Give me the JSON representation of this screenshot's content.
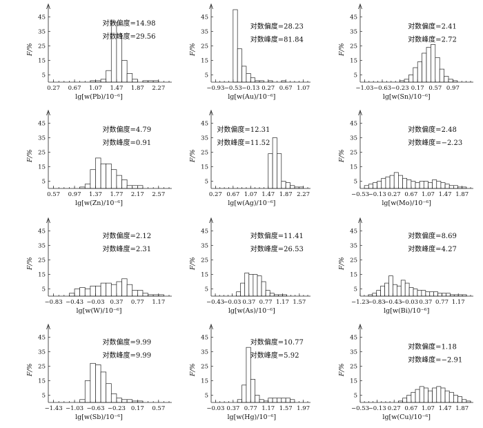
{
  "chart_data": [
    {
      "type": "bar",
      "ylabel": "F/%",
      "xlabel": "lg[w(Pb)/10⁻⁶]",
      "ylim": [
        0,
        50
      ],
      "yticks": [
        5,
        15,
        25,
        35,
        45
      ],
      "xticks": [
        "0.27",
        "0.67",
        "1.07",
        "1.47",
        "1.87",
        "2.27"
      ],
      "xlim": [
        0.17,
        2.47
      ],
      "skewness_label": "对数偏度=14.98",
      "kurtosis_label": "对数峰度=29.56",
      "bin_start": 0.97,
      "bin_width": 0.1,
      "values": [
        1,
        1,
        2,
        8,
        41,
        33,
        15,
        6,
        2,
        0,
        1,
        1,
        1,
        0
      ]
    },
    {
      "type": "bar",
      "ylabel": "F/%",
      "xlabel": "lg[w(Au)/10⁻⁶]",
      "ylim": [
        0,
        50
      ],
      "yticks": [
        5,
        15,
        25,
        35,
        45
      ],
      "xticks": [
        "−0.93",
        "−0.53",
        "−0.13",
        "0.27",
        "0.67",
        "1.07"
      ],
      "xlim": [
        -1.03,
        1.17
      ],
      "skewness_label": "对数偏度=28.23",
      "kurtosis_label": "对数峰度=81.84",
      "bin_start": -0.53,
      "bin_width": 0.1,
      "values": [
        50,
        23,
        11,
        6,
        3,
        1,
        1,
        0,
        1,
        0,
        0,
        1,
        0
      ]
    },
    {
      "type": "bar",
      "ylabel": "F/%",
      "xlabel": "lg[w(Sn)/10⁻⁶]",
      "ylim": [
        0,
        50
      ],
      "yticks": [
        5,
        15,
        25,
        35,
        45
      ],
      "xticks": [
        "−1.03",
        "−0.63",
        "−0.23",
        "0.17",
        "0.57",
        "0.97"
      ],
      "xlim": [
        -1.13,
        1.37
      ],
      "skewness_label": "对数偏度=2.41",
      "kurtosis_label": "对数峰度=2.72",
      "bin_start": -0.23,
      "bin_width": 0.1,
      "values": [
        1,
        2,
        5,
        10,
        14,
        20,
        24,
        26,
        17,
        9,
        4,
        2,
        1
      ]
    },
    {
      "type": "bar",
      "ylabel": "F/%",
      "xlabel": "lg[w(Zn)/10⁻⁶]",
      "ylim": [
        0,
        50
      ],
      "yticks": [
        5,
        15,
        25,
        35,
        45
      ],
      "xticks": [
        "0.57",
        "0.97",
        "1.37",
        "1.77",
        "2.17",
        "2.57"
      ],
      "xlim": [
        0.47,
        2.77
      ],
      "skewness_label": "对数偏度=4.79",
      "kurtosis_label": "对数峰度=0.91",
      "bin_start": 1.07,
      "bin_width": 0.1,
      "values": [
        1,
        3,
        13,
        21,
        17,
        17,
        13,
        9,
        6,
        2,
        2,
        2
      ]
    },
    {
      "type": "bar",
      "ylabel": "F/%",
      "xlabel": "lg[w(Ag)/10⁻⁶]",
      "ylim": [
        0,
        50
      ],
      "yticks": [
        5,
        15,
        25,
        35,
        45
      ],
      "xticks": [
        "0.27",
        "0.67",
        "1.07",
        "1.47",
        "1.87",
        "2.27"
      ],
      "xlim": [
        0.17,
        2.37
      ],
      "skewness_label": "对数偏度=12.31",
      "kurtosis_label": "对数峰度=11.52",
      "bin_start": 1.47,
      "bin_width": 0.1,
      "values": [
        24,
        35,
        24,
        5,
        4,
        2,
        1,
        1
      ]
    },
    {
      "type": "bar",
      "ylabel": "F/%",
      "xlabel": "lg[w(Mo)/10⁻⁶]",
      "ylim": [
        0,
        50
      ],
      "yticks": [
        5,
        15,
        25,
        35,
        45
      ],
      "xticks": [
        "−0.53",
        "−0.13",
        "0.27",
        "0.67",
        "1.07",
        "1.47",
        "1.87"
      ],
      "xlim": [
        -0.53,
        2.07
      ],
      "skewness_label": "对数偏度=2.48",
      "kurtosis_label": "对数峰度=−2.23",
      "bin_start": -0.43,
      "bin_width": 0.1,
      "values": [
        2,
        3,
        4,
        5,
        7,
        8,
        9,
        11,
        9,
        7,
        6,
        5,
        4,
        5,
        5,
        4,
        6,
        5,
        4,
        3,
        2,
        2,
        1,
        1
      ]
    },
    {
      "type": "bar",
      "ylabel": "F/%",
      "xlabel": "lg[w(W)/10⁻⁶]",
      "ylim": [
        0,
        50
      ],
      "yticks": [
        5,
        15,
        25,
        35,
        45
      ],
      "xticks": [
        "−0.83",
        "−0.43",
        "−0.03",
        "0.37",
        "0.77",
        "1.17"
      ],
      "xlim": [
        -0.93,
        1.37
      ],
      "skewness_label": "对数偏度=2.12",
      "kurtosis_label": "对数峰度=2.31",
      "bin_start": -0.53,
      "bin_width": 0.1,
      "values": [
        2,
        5,
        6,
        5,
        7,
        7,
        9,
        9,
        8,
        10,
        12,
        8,
        4,
        4,
        2,
        1,
        1,
        1
      ]
    },
    {
      "type": "bar",
      "ylabel": "F/%",
      "xlabel": "lg[w(As)/10⁻⁶]",
      "ylim": [
        0,
        50
      ],
      "yticks": [
        5,
        15,
        25,
        35,
        45
      ],
      "xticks": [
        "−0.43",
        "−0.03",
        "0.37",
        "0.77",
        "1.17",
        "1.57"
      ],
      "xlim": [
        -0.53,
        1.77
      ],
      "skewness_label": "对数偏度=11.41",
      "kurtosis_label": "对数峰度=26.53",
      "bin_start": 0.07,
      "bin_width": 0.1,
      "values": [
        3,
        9,
        16,
        15,
        15,
        14,
        10,
        4,
        2,
        1,
        1,
        1
      ]
    },
    {
      "type": "bar",
      "ylabel": "F/%",
      "xlabel": "lg[w(Bi)/10⁻⁶]",
      "ylim": [
        0,
        50
      ],
      "yticks": [
        5,
        15,
        25,
        35,
        45
      ],
      "xticks": [
        "−1.23",
        "−0.83",
        "−0.43",
        "−0.03",
        "0.37",
        "0.77",
        "1.17"
      ],
      "xlim": [
        -1.23,
        1.47
      ],
      "skewness_label": "对数偏度=8.69",
      "kurtosis_label": "对数峰度=4.27",
      "bin_start": -1.03,
      "bin_width": 0.1,
      "values": [
        1,
        2,
        4,
        7,
        9,
        14,
        8,
        7,
        11,
        9,
        6,
        5,
        4,
        4,
        3,
        3,
        3,
        2,
        2,
        2,
        1,
        1,
        1,
        1
      ]
    },
    {
      "type": "bar",
      "ylabel": "F/%",
      "xlabel": "lg[w(Sb)/10⁻⁶]",
      "ylim": [
        0,
        50
      ],
      "yticks": [
        5,
        15,
        25,
        35,
        45
      ],
      "xticks": [
        "−1.43",
        "−1.03",
        "−0.63",
        "−0.23",
        "0.17",
        "0.57"
      ],
      "xlim": [
        -1.53,
        0.77
      ],
      "skewness_label": "对数偏度=9.99",
      "kurtosis_label": "对数峰度=9.99",
      "bin_start": -0.93,
      "bin_width": 0.1,
      "values": [
        2,
        15,
        27,
        26,
        21,
        13,
        6,
        3,
        2,
        2,
        1,
        1
      ]
    },
    {
      "type": "bar",
      "ylabel": "F/%",
      "xlabel": "lg[w(Hg)/10⁻⁶]",
      "ylim": [
        0,
        50
      ],
      "yticks": [
        5,
        15,
        25,
        35,
        45
      ],
      "xticks": [
        "−0.03",
        "0.37",
        "0.77",
        "1.17",
        "1.57",
        "1.97"
      ],
      "xlim": [
        -0.13,
        2.07
      ],
      "skewness_label": "对数偏度=10.77",
      "kurtosis_label": "对数峰度=5.92",
      "bin_start": 0.47,
      "bin_width": 0.1,
      "values": [
        2,
        12,
        38,
        16,
        5,
        2,
        1,
        3,
        3,
        3,
        3,
        3,
        2
      ]
    },
    {
      "type": "bar",
      "ylabel": "F/%",
      "xlabel": "lg[w(Cu)/10⁻⁶]",
      "ylim": [
        0,
        50
      ],
      "yticks": [
        5,
        15,
        25,
        35,
        45
      ],
      "xticks": [
        "−0.53",
        "−0.13",
        "0.27",
        "0.67",
        "1.07",
        "1.47",
        "1.87"
      ],
      "xlim": [
        -0.53,
        2.07
      ],
      "skewness_label": "对数偏度=1.18",
      "kurtosis_label": "对数峰度=−2.91",
      "bin_start": 0.37,
      "bin_width": 0.1,
      "values": [
        1,
        3,
        5,
        7,
        9,
        11,
        10,
        8,
        10,
        11,
        10,
        8,
        7,
        5,
        4,
        2,
        1
      ]
    }
  ]
}
